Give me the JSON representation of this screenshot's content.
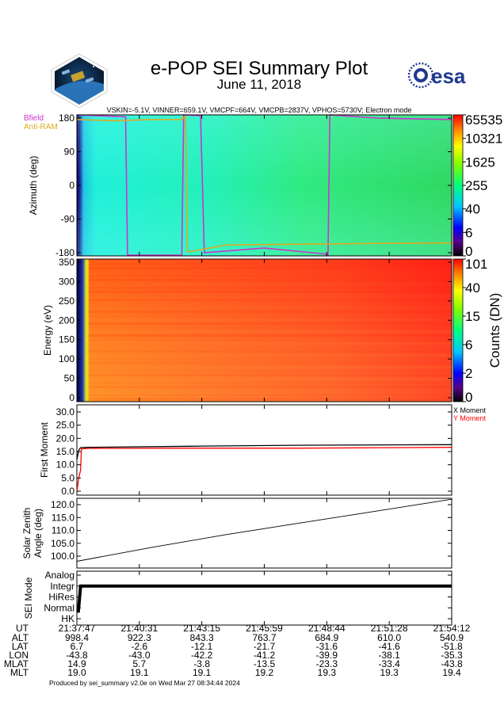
{
  "header": {
    "title": "e-POP SEI Summary Plot",
    "date": "June 11, 2018",
    "esa_logo_text": "esa",
    "subtitle": "VSKIN=-5.1V, VINNER=659.1V, VMCPF=664V, VMCPB=2837V, VPHOS=5730V; Electron mode"
  },
  "colors": {
    "bfield": "#cc33cc",
    "antiram": "#ddaa22",
    "x_moment": "#000000",
    "y_moment": "#ff0000",
    "esa_blue": "#1f3a8f"
  },
  "footer": {
    "produced_by": "Produced by sei_summary v2.0e on Wed Mar 27 08:34:44 2024"
  },
  "chart_data": [
    {
      "type": "heatmap",
      "name": "azimuth",
      "ylabel": "Azimuth (deg)",
      "ylim": [
        -180,
        180
      ],
      "y_ticks": [
        "180",
        "90",
        "0",
        "-90",
        "-180"
      ],
      "legend": [
        "Bfield",
        "Anti-RAM"
      ],
      "colorbar_ticks": [
        "65535",
        "10321",
        "1625",
        "255",
        "40",
        "6",
        "0"
      ],
      "bfield_track": {
        "x": [
          0.0,
          0.13,
          0.135,
          0.28,
          0.285,
          0.33,
          0.34,
          0.5,
          0.66,
          0.67,
          0.675,
          0.8,
          1.0
        ],
        "y": [
          180,
          175,
          -178,
          -178,
          180,
          178,
          -172,
          -160,
          -175,
          -178,
          180,
          172,
          168
        ]
      },
      "antiram_track": {
        "x": [
          0.0,
          0.1,
          0.2,
          0.28,
          0.29,
          0.295,
          0.4,
          0.6,
          0.8,
          1.0
        ],
        "y": [
          168,
          165,
          168,
          168,
          178,
          -170,
          -152,
          -150,
          -148,
          -147
        ]
      }
    },
    {
      "type": "heatmap",
      "name": "energy",
      "ylabel": "Energy (eV)",
      "ylim": [
        0,
        350
      ],
      "y_ticks": [
        "350",
        "300",
        "250",
        "200",
        "150",
        "100",
        "50",
        "0"
      ],
      "colorbar_ticks": [
        "101",
        "40",
        "15",
        "6",
        "2",
        "0"
      ],
      "colorbar_label": "Counts (DN)"
    },
    {
      "type": "line",
      "name": "first_moment",
      "ylabel": "First Moment",
      "ylim": [
        0.0,
        32.0
      ],
      "y_ticks": [
        "30.0",
        "25.0",
        "20.0",
        "15.0",
        "10.0",
        "5.0",
        "0.0"
      ],
      "series": [
        {
          "name": "X Moment",
          "x": [
            0,
            0.005,
            0.01,
            0.03,
            0.3,
            0.6,
            1.0
          ],
          "values": [
            12.0,
            15.5,
            16.5,
            16.6,
            17.0,
            17.4,
            17.6
          ]
        },
        {
          "name": "Y Moment",
          "x": [
            0,
            0.005,
            0.01,
            0.012,
            0.03,
            0.3,
            0.6,
            1.0
          ],
          "values": [
            0.0,
            5.0,
            8.0,
            16.0,
            16.2,
            16.3,
            16.3,
            16.6
          ]
        }
      ]
    },
    {
      "type": "line",
      "name": "solar_zenith",
      "ylabel": "Solar Zenith Angle (deg)",
      "ylabel_lines": [
        "Solar Zenith",
        "Angle (deg)"
      ],
      "ylim": [
        97.0,
        124.0
      ],
      "y_ticks": [
        "120.0",
        "115.0",
        "110.0",
        "105.0",
        "100.0"
      ],
      "series": [
        {
          "name": "SZA",
          "x": [
            0,
            0.2,
            0.4,
            0.6,
            0.8,
            1.0
          ],
          "values": [
            98.0,
            103.4,
            108.4,
            113.0,
            117.5,
            122.1
          ]
        }
      ]
    },
    {
      "type": "line",
      "name": "sei_mode",
      "ylabel": "SEI Mode",
      "y_ticks": [
        "Analog",
        "Integr",
        "HiRes",
        "Normal",
        "HK"
      ],
      "series": [
        {
          "name": "mode",
          "x": [
            0,
            0.004,
            0.01,
            0.015,
            1.0
          ],
          "values": [
            3.3,
            3.3,
            1.0,
            1.0,
            1.0
          ]
        }
      ]
    }
  ],
  "time_axis": {
    "labels": [
      "UT",
      "ALT",
      "LAT",
      "LON",
      "MLAT",
      "MLT"
    ],
    "columns": [
      [
        "21:37:47",
        "998.4",
        "6.7",
        "-43.8",
        "14.9",
        "19.0"
      ],
      [
        "21:40:31",
        "922.3",
        "-2.6",
        "-43.0",
        "5.7",
        "19.1"
      ],
      [
        "21:43:15",
        "843.3",
        "-12.1",
        "-42.2",
        "-3.8",
        "19.1"
      ],
      [
        "21:45:59",
        "763.7",
        "-21.7",
        "-41.2",
        "-13.5",
        "19.2"
      ],
      [
        "21:48:44",
        "684.9",
        "-31.6",
        "-39.9",
        "-23.3",
        "19.3"
      ],
      [
        "21:51:28",
        "610.0",
        "-41.6",
        "-38.1",
        "-33.4",
        "19.3"
      ],
      [
        "21:54:12",
        "540.9",
        "-51.8",
        "-35.3",
        "-43.8",
        "19.4"
      ]
    ]
  }
}
